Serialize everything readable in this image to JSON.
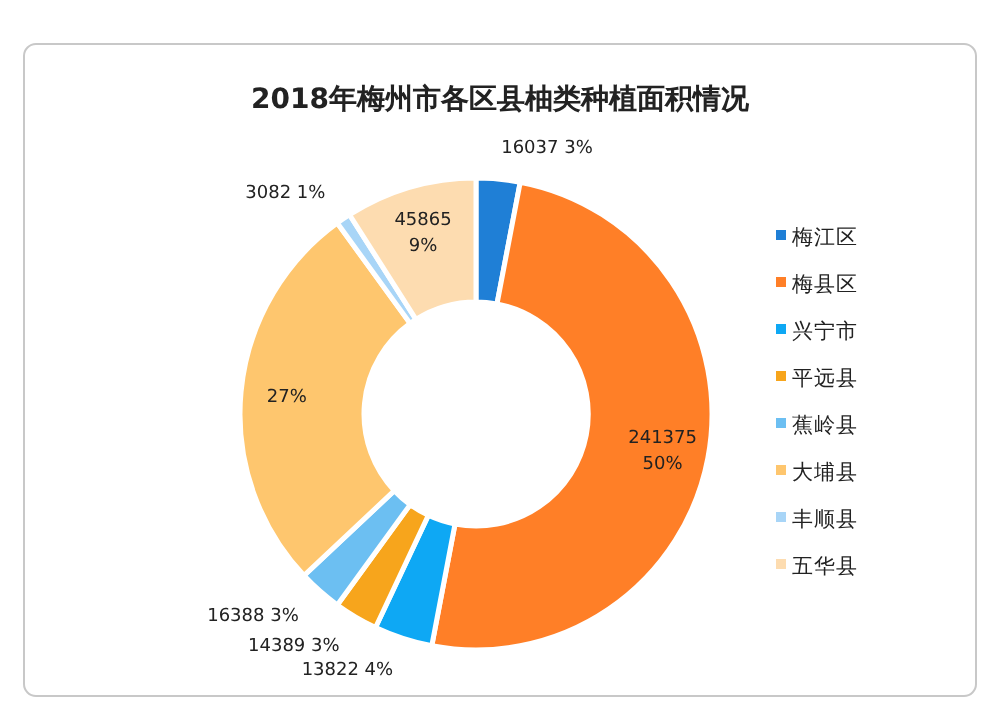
{
  "chart_data": {
    "type": "donut",
    "title": "2018年梅州市各区县柚类种植面积情况",
    "categories": [
      "梅江区",
      "梅县区",
      "兴宁市",
      "平远县",
      "蕉岭县",
      "大埔县",
      "丰顺县",
      "五华县"
    ],
    "values": [
      3,
      50,
      4,
      3,
      3,
      27,
      1,
      9
    ],
    "value_labels": [
      "16037\n3%",
      "241375\n50%",
      "13822\n4%",
      "14389\n3%",
      "16388\n3%",
      "27%",
      "3082\n1%",
      "45865\n9%"
    ],
    "colors": [
      "#1f7fd6",
      "#ff7f27",
      "#0ea8f4",
      "#f7a51c",
      "#6cbff2",
      "#fec66e",
      "#a8d5f7",
      "#fddcb0"
    ],
    "legend": "right"
  }
}
